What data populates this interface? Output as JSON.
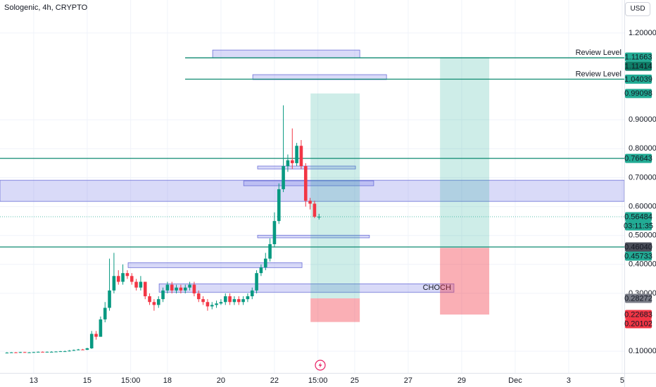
{
  "header": {
    "title": "Sologenic, 4h, CRYPTO",
    "currency": "USD"
  },
  "chart_data": {
    "type": "candlestick",
    "x": [
      12,
      12.167,
      12.333,
      12.5,
      12.667,
      12.833,
      13,
      13.167,
      13.333,
      13.5,
      13.667,
      13.833,
      14,
      14.167,
      14.333,
      14.5,
      14.667,
      14.833,
      15,
      15.167,
      15.333,
      15.5,
      15.667,
      15.833,
      16,
      16.167,
      16.333,
      16.5,
      16.667,
      16.833,
      17,
      17.167,
      17.333,
      17.5,
      17.667,
      17.833,
      18,
      18.167,
      18.333,
      18.5,
      18.667,
      18.833,
      19,
      19.167,
      19.333,
      19.5,
      19.667,
      19.833,
      20,
      20.167,
      20.333,
      20.5,
      20.667,
      20.833,
      21,
      21.167,
      21.333,
      21.5,
      21.667,
      21.833,
      22,
      22.167,
      22.333,
      22.5,
      22.667,
      22.833,
      23,
      23.167,
      23.333,
      23.5,
      23.667
    ],
    "open": [
      0.094,
      0.095,
      0.096,
      0.095,
      0.097,
      0.096,
      0.096,
      0.097,
      0.098,
      0.097,
      0.098,
      0.098,
      0.099,
      0.1,
      0.1,
      0.102,
      0.104,
      0.106,
      0.105,
      0.11,
      0.16,
      0.15,
      0.21,
      0.25,
      0.31,
      0.36,
      0.34,
      0.37,
      0.36,
      0.34,
      0.32,
      0.34,
      0.29,
      0.27,
      0.26,
      0.28,
      0.31,
      0.33,
      0.31,
      0.32,
      0.31,
      0.32,
      0.33,
      0.3,
      0.28,
      0.27,
      0.255,
      0.26,
      0.265,
      0.27,
      0.29,
      0.27,
      0.28,
      0.27,
      0.28,
      0.29,
      0.31,
      0.37,
      0.39,
      0.42,
      0.47,
      0.55,
      0.66,
      0.74,
      0.76,
      0.75,
      0.81,
      0.74,
      0.62,
      0.61,
      0.565
    ],
    "high": [
      0.097,
      0.097,
      0.097,
      0.098,
      0.098,
      0.097,
      0.098,
      0.099,
      0.099,
      0.099,
      0.1,
      0.1,
      0.101,
      0.102,
      0.104,
      0.106,
      0.108,
      0.108,
      0.112,
      0.17,
      0.17,
      0.22,
      0.27,
      0.42,
      0.44,
      0.38,
      0.4,
      0.38,
      0.37,
      0.35,
      0.36,
      0.34,
      0.3,
      0.28,
      0.29,
      0.32,
      0.34,
      0.34,
      0.33,
      0.33,
      0.33,
      0.34,
      0.34,
      0.31,
      0.29,
      0.28,
      0.27,
      0.275,
      0.28,
      0.3,
      0.3,
      0.29,
      0.29,
      0.29,
      0.3,
      0.32,
      0.38,
      0.4,
      0.44,
      0.49,
      0.58,
      0.68,
      0.95,
      0.78,
      0.87,
      0.82,
      0.83,
      0.75,
      0.63,
      0.62,
      0.575
    ],
    "low": [
      0.093,
      0.094,
      0.094,
      0.094,
      0.095,
      0.095,
      0.095,
      0.096,
      0.096,
      0.096,
      0.097,
      0.097,
      0.098,
      0.099,
      0.099,
      0.101,
      0.103,
      0.104,
      0.104,
      0.108,
      0.14,
      0.15,
      0.2,
      0.24,
      0.3,
      0.33,
      0.33,
      0.35,
      0.33,
      0.31,
      0.31,
      0.28,
      0.26,
      0.24,
      0.25,
      0.27,
      0.3,
      0.3,
      0.3,
      0.3,
      0.3,
      0.31,
      0.29,
      0.27,
      0.26,
      0.24,
      0.245,
      0.25,
      0.26,
      0.26,
      0.26,
      0.26,
      0.26,
      0.26,
      0.27,
      0.28,
      0.3,
      0.36,
      0.38,
      0.41,
      0.46,
      0.54,
      0.65,
      0.72,
      0.73,
      0.74,
      0.73,
      0.6,
      0.59,
      0.56,
      0.555
    ],
    "close": [
      0.095,
      0.096,
      0.095,
      0.097,
      0.096,
      0.096,
      0.097,
      0.098,
      0.097,
      0.098,
      0.098,
      0.099,
      0.1,
      0.1,
      0.102,
      0.104,
      0.106,
      0.105,
      0.11,
      0.16,
      0.15,
      0.21,
      0.25,
      0.31,
      0.36,
      0.34,
      0.37,
      0.36,
      0.34,
      0.32,
      0.34,
      0.29,
      0.27,
      0.26,
      0.28,
      0.31,
      0.33,
      0.31,
      0.32,
      0.31,
      0.32,
      0.33,
      0.3,
      0.28,
      0.27,
      0.255,
      0.26,
      0.265,
      0.27,
      0.29,
      0.27,
      0.28,
      0.27,
      0.28,
      0.29,
      0.31,
      0.37,
      0.39,
      0.42,
      0.47,
      0.55,
      0.66,
      0.74,
      0.76,
      0.75,
      0.81,
      0.74,
      0.62,
      0.61,
      0.565,
      0.565
    ],
    "up_color": "#089981",
    "down_color": "#f23645",
    "xlim": [
      11.74,
      35.08
    ],
    "ylim": [
      0.025,
      1.314
    ],
    "xticks": [
      13,
      15,
      {
        "value": 16.625,
        "label": "15:00"
      },
      18,
      20,
      22,
      {
        "value": 23.625,
        "label": "15:00"
      },
      25,
      27,
      29,
      {
        "value": 31,
        "label": "Dec"
      },
      {
        "value": 33,
        "label": "3"
      },
      {
        "value": 35,
        "label": "5"
      }
    ],
    "yticks": [
      {
        "value": 0.1,
        "label": "0.10000"
      },
      {
        "value": 0.3,
        "label": "0.30000"
      },
      {
        "value": 0.4,
        "label": "0.40000"
      },
      {
        "value": 0.5,
        "label": "0.50000"
      },
      {
        "value": 0.6,
        "label": "0.60000"
      },
      {
        "value": 0.7,
        "label": "0.70000"
      },
      {
        "value": 0.8,
        "label": "0.80000"
      },
      {
        "value": 0.9,
        "label": "0.90000"
      },
      {
        "value": 1.2,
        "label": "1.20000"
      }
    ],
    "grid": true,
    "hlines": [
      {
        "value": 1.11414,
        "tag_label": "1.11414",
        "from": 18.66,
        "color": "#0e8a70",
        "tag_color": "#0e7c66",
        "note": "Review Level"
      },
      {
        "value": 1.04039,
        "tag_label": "1.04039",
        "from": 18.66,
        "color": "#0e8a70",
        "tag_color": "#22ab94",
        "note": "Review Level"
      },
      {
        "value": 0.76643,
        "tag_label": "0.76643",
        "from": 11.74,
        "color": "#0e8a70",
        "tag_color": "#22ab94"
      },
      {
        "value": 0.4604,
        "tag_label": "0.46040",
        "from": 11.74,
        "color": "#0e8a70",
        "tag_color": "#4a4e59"
      }
    ],
    "zones": [
      {
        "x": [
          19.69,
          25.19
        ],
        "y": [
          1.114,
          1.141
        ]
      },
      {
        "x": [
          21.19,
          26.19
        ],
        "y": [
          1.039,
          1.056
        ]
      },
      {
        "x": [
          11.74,
          35.08
        ],
        "y": [
          0.618,
          0.691
        ]
      },
      {
        "x": [
          20.85,
          25.71
        ],
        "y": [
          0.672,
          0.689
        ]
      },
      {
        "x": [
          21.37,
          25.03
        ],
        "y": [
          0.73,
          0.74
        ]
      },
      {
        "x": [
          21.37,
          25.55
        ],
        "y": [
          0.492,
          0.501
        ]
      },
      {
        "x": [
          16.53,
          23.03
        ],
        "y": [
          0.389,
          0.406
        ]
      },
      {
        "x": [
          17.69,
          28.71
        ],
        "y": [
          0.304,
          0.333
        ],
        "label": "CHOCH"
      }
    ],
    "positions": [
      {
        "x": [
          23.35,
          25.19
        ],
        "target": {
          "value": 0.99098,
          "label": "0.99098",
          "color": "#22ab94"
        },
        "entry": {
          "value": 0.28272,
          "label": "0.28272",
          "color": "#787b86"
        },
        "stop": {
          "value": 0.20102,
          "label": "0.20102",
          "color": "#f23645"
        }
      },
      {
        "x": [
          28.19,
          30.03
        ],
        "target": {
          "value": 1.11663,
          "label": "1.11663",
          "color": "#22ab94"
        },
        "entry": {
          "value": 0.45733,
          "label": "0.45733",
          "color": "#22ab94"
        },
        "stop": {
          "value": 0.22683,
          "label": "0.22683",
          "color": "#f23645"
        }
      }
    ],
    "last_price": {
      "value": 0.56484,
      "label": "0.56484",
      "countdown": "03:11:35",
      "color": "#22ab94"
    }
  }
}
